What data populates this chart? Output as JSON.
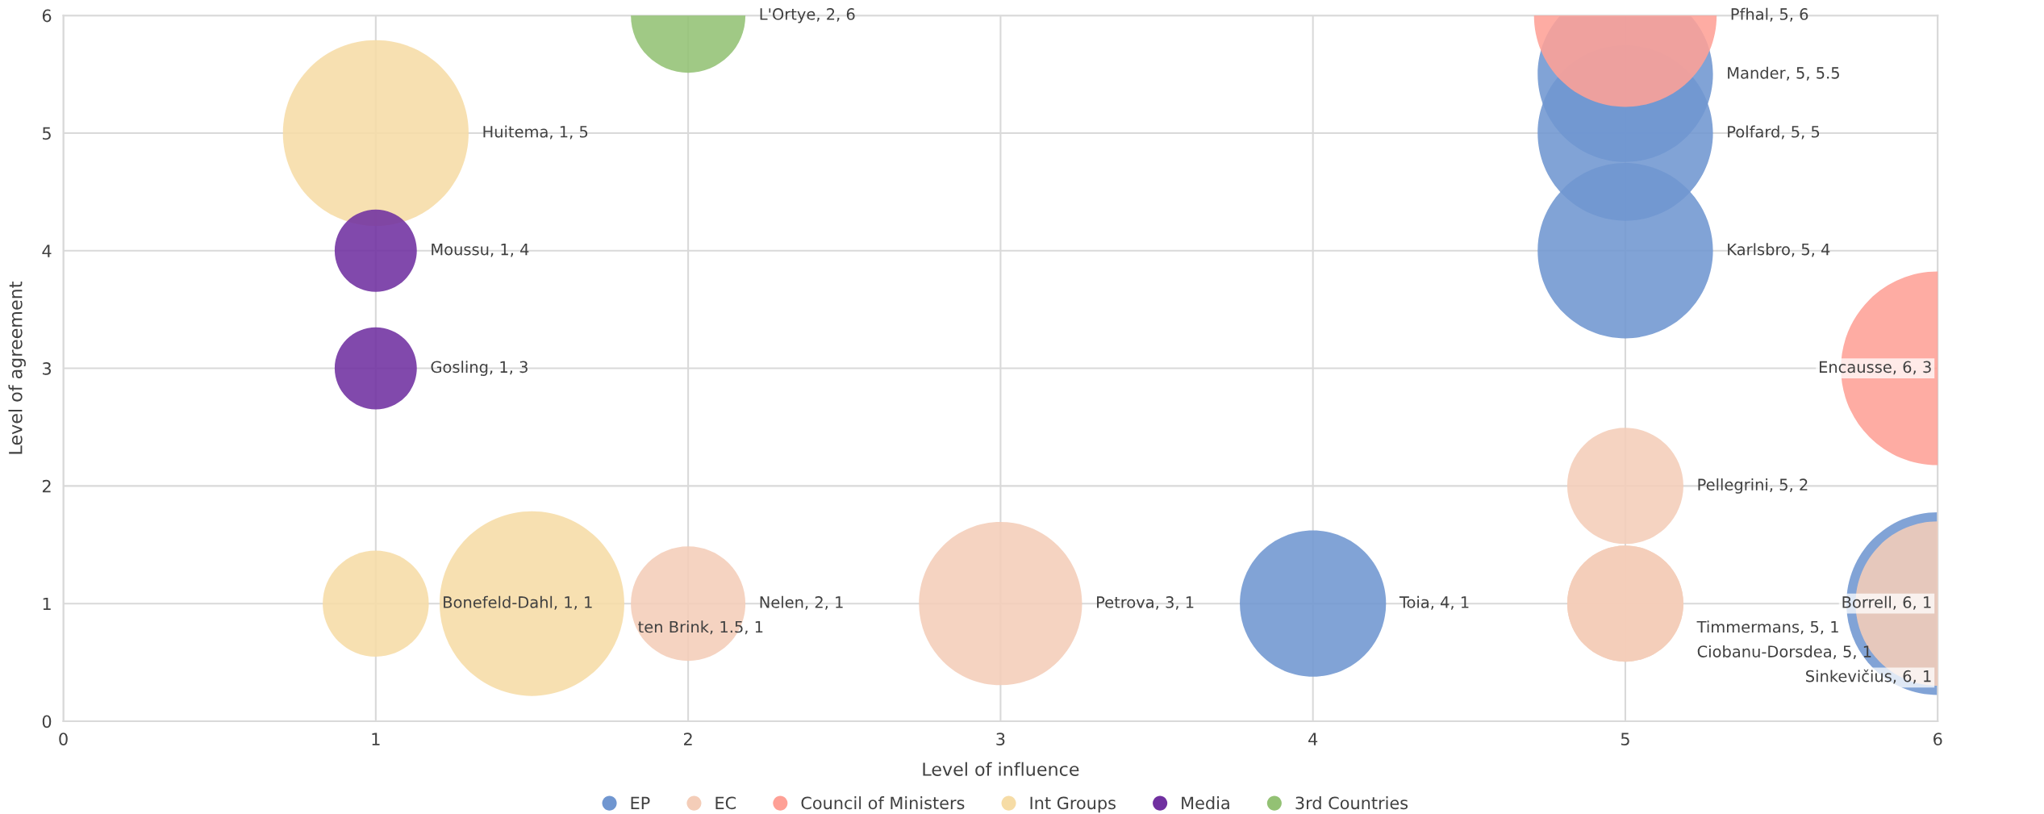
{
  "chart_data": {
    "type": "bubble",
    "xlabel": "Level of influence",
    "ylabel": "Level of agreement",
    "xlim": [
      0,
      6
    ],
    "xticks": [
      0,
      1,
      2,
      3,
      4,
      5,
      6
    ],
    "ylim": [
      0,
      6
    ],
    "yticks": [
      0,
      1,
      2,
      3,
      4,
      5,
      6
    ],
    "grid": true,
    "legend": "bottom",
    "marker": "circle",
    "series": [
      {
        "name": "EP",
        "color": "#7096d0",
        "x": [
          4,
          5,
          5,
          5,
          6
        ],
        "values": [
          1,
          5.5,
          5,
          4,
          1
        ],
        "sizes": [
          0.57,
          0.82,
          0.82,
          0.82,
          0.89
        ],
        "value_labels": [
          "Toia, 4, 1",
          "Mander, 5, 5.5",
          "Polfard, 5, 5",
          "Karlsbro, 5, 4",
          "Borrell, 6, 1"
        ]
      },
      {
        "name": "EC",
        "color": "#f4cdb8",
        "x": [
          2,
          3,
          5,
          5,
          5,
          6
        ],
        "values": [
          1,
          1,
          2,
          1,
          1,
          1
        ],
        "sizes": [
          0.35,
          0.71,
          0.36,
          0.36,
          0.36,
          0.72
        ],
        "value_labels": [
          "Nelen, 2, 1",
          "Petrova, 3, 1",
          "Pellegrini, 5, 2",
          "Timmermans, 5, 1",
          "Ciobanu-Dorsdea, 5, 1",
          "Sinkevičius, 6, 1"
        ]
      },
      {
        "name": "Council of Ministers",
        "color": "#fea096",
        "x": [
          5,
          6
        ],
        "values": [
          6,
          3
        ],
        "sizes": [
          0.89,
          1
        ],
        "value_labels": [
          "Pfhal, 5, 6",
          "Encausse, 6, 3"
        ]
      },
      {
        "name": "Int Groups",
        "color": "#f6dca6",
        "x": [
          1,
          1,
          1.5
        ],
        "values": [
          5,
          1,
          1
        ],
        "sizes": [
          0.92,
          0.3,
          0.91
        ],
        "value_labels": [
          "Huitema, 1, 5",
          "Bonefeld-Dahl, 1, 1",
          "ten Brink, 1.5, 1"
        ]
      },
      {
        "name": "Media",
        "color": "#7030a0",
        "x": [
          1,
          1
        ],
        "values": [
          4,
          3
        ],
        "sizes": [
          0.18,
          0.18
        ],
        "value_labels": [
          "Moussu, 1, 4",
          "Gosling, 1, 3"
        ]
      },
      {
        "name": "3rd Countries",
        "color": "#93c174",
        "x": [
          2
        ],
        "values": [
          6
        ],
        "sizes": [
          0.35
        ],
        "value_labels": [
          "L'Ortye, 2, 6"
        ]
      }
    ]
  }
}
